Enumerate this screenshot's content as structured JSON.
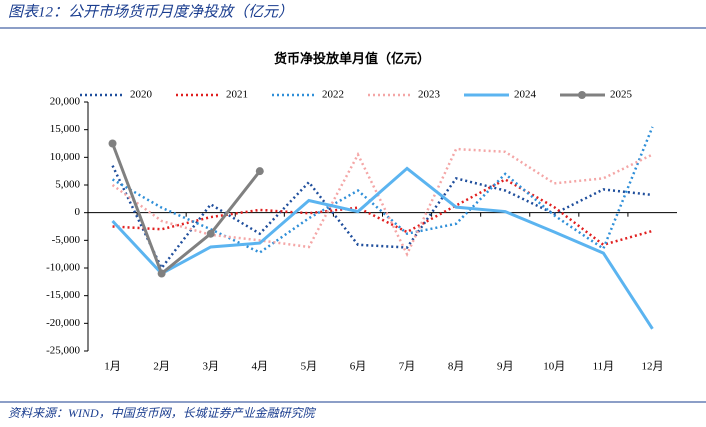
{
  "header": "图表12：公开市场货币月度净投放（亿元）",
  "source": "资料来源：WIND，中国货币网，长城证券产业金融研究院",
  "chart_data": {
    "type": "line",
    "title": "货币净投放单月值（亿元）",
    "categories": [
      "1月",
      "2月",
      "3月",
      "4月",
      "5月",
      "6月",
      "7月",
      "8月",
      "9月",
      "10月",
      "11月",
      "12月"
    ],
    "series": [
      {
        "name": "2020",
        "color": "#1f4e9c",
        "line_style": "dotted",
        "values": [
          8500,
          -10000,
          1500,
          -3800,
          5500,
          -5800,
          -6300,
          6200,
          4000,
          -200,
          4200,
          3200
        ]
      },
      {
        "name": "2021",
        "color": "#e02020",
        "line_style": "dotted",
        "values": [
          -2500,
          -3000,
          -800,
          500,
          -100,
          900,
          -3500,
          1300,
          6000,
          1000,
          -5800,
          -3300
        ]
      },
      {
        "name": "2022",
        "color": "#2f8fd8",
        "line_style": "dotted",
        "values": [
          6000,
          900,
          -3000,
          -7200,
          -1000,
          4000,
          -3800,
          -2000,
          7000,
          -500,
          -6500,
          15500
        ]
      },
      {
        "name": "2023",
        "color": "#f4a6a6",
        "line_style": "dotted",
        "values": [
          5000,
          -1500,
          -4000,
          -5000,
          -6200,
          10500,
          -7500,
          11500,
          11000,
          5300,
          6200,
          10500
        ]
      },
      {
        "name": "2024",
        "color": "#5bb4f0",
        "line_style": "solid",
        "values": [
          -1500,
          -11000,
          -6200,
          -5500,
          2200,
          200,
          8000,
          1000,
          200,
          -3500,
          -7300,
          -21000
        ]
      },
      {
        "name": "2025",
        "color": "#808080",
        "line_style": "solid",
        "markers": true,
        "values": [
          12500,
          -11000,
          -3800,
          7500,
          null,
          null,
          null,
          null,
          null,
          null,
          null,
          null
        ]
      }
    ],
    "ylim": [
      -25000,
      20000
    ],
    "yticks": [
      {
        "value": -25000,
        "label": "-25,000"
      },
      {
        "value": -20000,
        "label": "-20,000"
      },
      {
        "value": -15000,
        "label": "-15,000"
      },
      {
        "value": -10000,
        "label": "-10,000"
      },
      {
        "value": -5000,
        "label": "-5,000"
      },
      0,
      {
        "value": 5000,
        "label": "5,000"
      },
      {
        "value": 10000,
        "label": "10,000"
      },
      {
        "value": 15000,
        "label": "15,000"
      },
      {
        "value": 20000,
        "label": "20,000"
      }
    ],
    "legend": "top"
  }
}
